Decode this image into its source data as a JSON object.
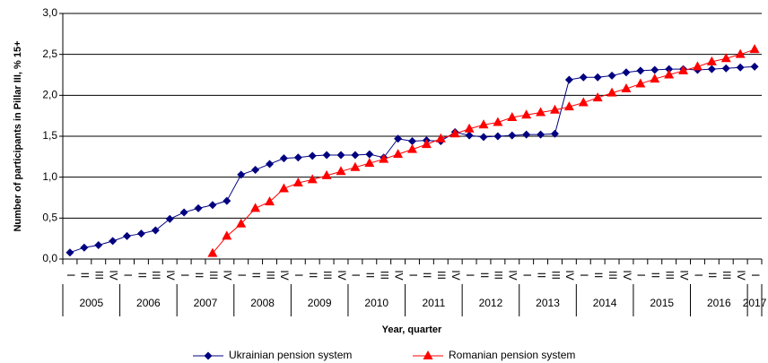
{
  "chart_data": {
    "type": "line",
    "y_label": "Number of participants in Pillar III, % 15+",
    "x_label": "Year, quarter",
    "categories": [
      "I",
      "II",
      "III",
      "IV",
      "I",
      "II",
      "III",
      "IV",
      "I",
      "II",
      "III",
      "IV",
      "I",
      "II",
      "III",
      "IV",
      "I",
      "II",
      "III",
      "IV",
      "I",
      "II",
      "III",
      "IV",
      "I",
      "II",
      "III",
      "IV",
      "I",
      "II",
      "III",
      "IV",
      "I",
      "II",
      "III",
      "IV",
      "I",
      "II",
      "III",
      "IV",
      "I",
      "II",
      "III",
      "IV",
      "I",
      "II",
      "III",
      "IV",
      "I"
    ],
    "years": [
      "2005",
      "2006",
      "2007",
      "2008",
      "2009",
      "2010",
      "2011",
      "2012",
      "2013",
      "2014",
      "2015",
      "2016",
      "2017"
    ],
    "ylim": [
      0,
      3
    ],
    "yticks": [
      {
        "value": 0,
        "label": "0,0"
      },
      {
        "value": 0.5,
        "label": "0,5"
      },
      {
        "value": 1,
        "label": "1,0"
      },
      {
        "value": 1.5,
        "label": "1,5"
      },
      {
        "value": 2,
        "label": "2,0"
      },
      {
        "value": 2.5,
        "label": "2,5"
      },
      {
        "value": 3,
        "label": "3,0"
      }
    ],
    "grid": true,
    "series": [
      {
        "name": "Ukrainian pension system",
        "color": "#000080",
        "marker": "diamond",
        "values": [
          0.08,
          0.14,
          0.17,
          0.22,
          0.28,
          0.31,
          0.35,
          0.49,
          0.57,
          0.62,
          0.66,
          0.71,
          1.03,
          1.09,
          1.16,
          1.23,
          1.24,
          1.26,
          1.27,
          1.27,
          1.27,
          1.28,
          1.24,
          1.47,
          1.44,
          1.45,
          1.44,
          1.55,
          1.51,
          1.49,
          1.5,
          1.51,
          1.52,
          1.52,
          1.53,
          2.19,
          2.22,
          2.22,
          2.24,
          2.28,
          2.3,
          2.31,
          2.32,
          2.32,
          2.31,
          2.32,
          2.33,
          2.34,
          2.35
        ]
      },
      {
        "name": "Romanian pension system",
        "color": "#ff0000",
        "marker": "triangle",
        "values": [
          null,
          null,
          null,
          null,
          null,
          null,
          null,
          null,
          null,
          null,
          0.07,
          0.28,
          0.43,
          0.62,
          0.7,
          0.86,
          0.93,
          0.97,
          1.02,
          1.07,
          1.12,
          1.17,
          1.22,
          1.28,
          1.34,
          1.4,
          1.47,
          1.53,
          1.59,
          1.64,
          1.67,
          1.73,
          1.76,
          1.79,
          1.82,
          1.86,
          1.91,
          1.97,
          2.03,
          2.08,
          2.14,
          2.2,
          2.25,
          2.3,
          2.35,
          2.41,
          2.45,
          2.5,
          2.56
        ]
      }
    ]
  }
}
